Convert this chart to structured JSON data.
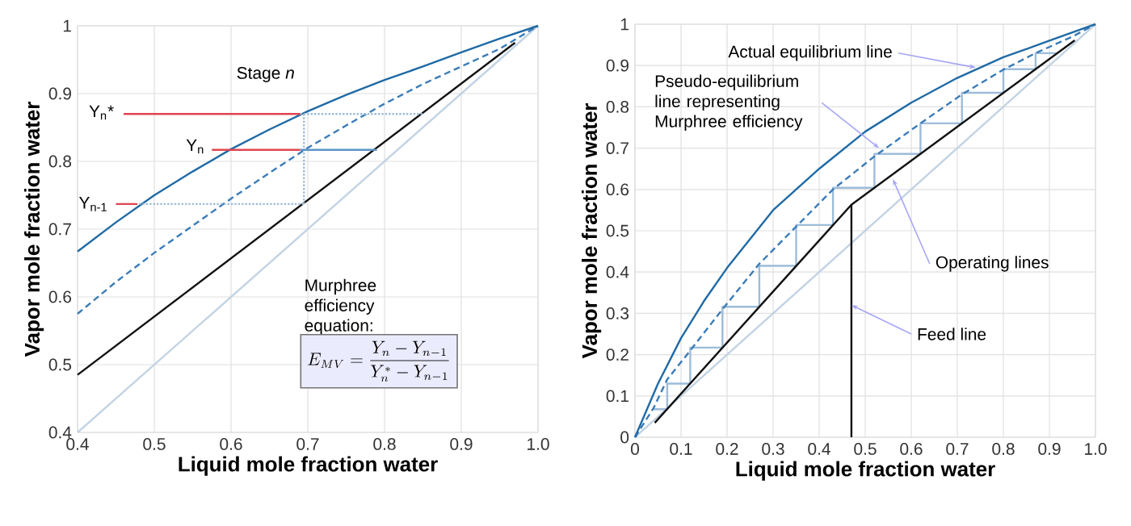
{
  "chart_data": [
    {
      "type": "line",
      "xlabel": "Liquid mole fraction water",
      "ylabel": "Vapor mole fraction water",
      "xlim": [
        0.4,
        1
      ],
      "ylim": [
        0.4,
        1
      ],
      "xticks": [
        0.4,
        0.5,
        0.6,
        0.7,
        0.8,
        0.9,
        {
          "value": 1,
          "label": "1.0"
        }
      ],
      "yticks": [
        0.4,
        0.5,
        0.6,
        0.7,
        0.8,
        0.9,
        1
      ],
      "grid": true,
      "series": [
        {
          "x": [
            0.4,
            1
          ],
          "values": [
            0.4,
            1
          ],
          "color": "#c2d3e3",
          "line_style": "solid"
        },
        {
          "x": [
            0.4,
            0.97
          ],
          "values": [
            0.485,
            0.975
          ],
          "color": "#111111",
          "line_style": "solid"
        },
        {
          "x": [
            0.4,
            0.45,
            0.5,
            0.55,
            0.6,
            0.65,
            0.7,
            0.75,
            0.8,
            0.85,
            0.9,
            0.95,
            1
          ],
          "values": [
            0.575,
            0.622,
            0.665,
            0.705,
            0.745,
            0.783,
            0.82,
            0.853,
            0.885,
            0.914,
            0.94,
            0.966,
            1
          ],
          "color": "#3a7cb8",
          "line_style": "dashed"
        },
        {
          "x": [
            0.4,
            0.45,
            0.5,
            0.55,
            0.6,
            0.65,
            0.7,
            0.75,
            0.8,
            0.85,
            0.9,
            0.95,
            1
          ],
          "values": [
            0.667,
            0.71,
            0.75,
            0.785,
            0.818,
            0.847,
            0.874,
            0.898,
            0.92,
            0.94,
            0.961,
            0.981,
            1
          ],
          "color": "#1f6aa5",
          "line_style": "solid"
        },
        {
          "x": [
            0.69,
            0.85,
            null,
            0.48,
            0.695,
            null,
            0.695,
            0.695
          ],
          "values": [
            0.87,
            0.87,
            null,
            0.737,
            0.737,
            null,
            0.737,
            0.87
          ],
          "color": "#9dbcd9",
          "line_style": "dotted"
        },
        {
          "x": [
            0.69,
            0.79
          ],
          "values": [
            0.817,
            0.817
          ],
          "color": "#5b93c6",
          "line_style": "solid"
        },
        {
          "x": [
            0.46,
            0.69,
            null,
            0.575,
            0.69,
            null,
            0.45,
            0.478
          ],
          "values": [
            0.87,
            0.87,
            null,
            0.817,
            0.817,
            null,
            0.737,
            0.737
          ],
          "color": "#e04550",
          "line_style": "solid"
        }
      ],
      "annotations": [
        {
          "text": "Stage *n*",
          "x": 0.69,
          "y": 0.87
        },
        {
          "text": "Y$_{n}$*",
          "x": 0.46,
          "y": 0.87
        },
        {
          "text": "Y$_{n}$",
          "x": 0.575,
          "y": 0.817
        },
        {
          "text": "Y$_{n-1}$",
          "x": 0.45,
          "y": 0.737
        },
        "Murphree efficiency equation:",
        "E_{MV} = \\frac{Y_n - Y_{n-1}}{Y_n^{*} - Y_{n-1}}"
      ]
    },
    {
      "type": "line",
      "xlabel": "Liquid mole fraction water",
      "ylabel": "Vapor mole fraction water",
      "xlim": [
        0,
        1
      ],
      "ylim": [
        0,
        1
      ],
      "xticks": [
        0,
        0.1,
        0.2,
        0.3,
        0.4,
        0.5,
        0.6,
        0.7,
        0.8,
        0.9,
        {
          "value": 1,
          "label": "1.0"
        }
      ],
      "yticks": [
        0,
        0.1,
        0.2,
        0.3,
        0.4,
        0.5,
        0.6,
        0.7,
        0.8,
        0.9,
        1
      ],
      "grid": true,
      "series": [
        {
          "x": [
            0,
            1
          ],
          "values": [
            0,
            1
          ],
          "color": "#c2d3e3",
          "line_style": "solid"
        },
        {
          "x": [
            0.917,
            0.87,
            0.87,
            0.8,
            0.8,
            0.71,
            0.71,
            0.62,
            0.62,
            0.52,
            0.52,
            0.43,
            0.43,
            0.35,
            0.35,
            0.27,
            0.27,
            0.19,
            0.19,
            0.12,
            0.12,
            0.07,
            0.07,
            0.04
          ],
          "values": [
            0.93,
            0.93,
            0.891,
            0.891,
            0.834,
            0.834,
            0.76,
            0.76,
            0.686,
            0.686,
            0.604,
            0.604,
            0.514,
            0.514,
            0.415,
            0.415,
            0.316,
            0.316,
            0.217,
            0.217,
            0.13,
            0.13,
            0.068,
            0.068
          ],
          "color": "#9dbcd9",
          "line_style": "solid"
        },
        {
          "x": [
            0.043,
            0.47,
            0.955
          ],
          "values": [
            0.035,
            0.563,
            0.961
          ],
          "color": "#111111",
          "line_style": "solid"
        },
        {
          "x": [
            0.47,
            0.47
          ],
          "values": [
            0,
            0.563
          ],
          "color": "#111111",
          "line_style": "solid"
        },
        {
          "x": [
            0,
            0.04,
            0.07,
            0.12,
            0.19,
            0.27,
            0.35,
            0.43,
            0.52,
            0.62,
            0.71,
            0.8,
            0.87,
            0.95,
            1
          ],
          "values": [
            0,
            0.07,
            0.14,
            0.21,
            0.31,
            0.42,
            0.51,
            0.6,
            0.68,
            0.76,
            0.83,
            0.89,
            0.93,
            0.97,
            1
          ],
          "color": "#3a7cb8",
          "line_style": "dashed"
        },
        {
          "x": [
            0,
            0.05,
            0.1,
            0.15,
            0.2,
            0.3,
            0.4,
            0.5,
            0.6,
            0.7,
            0.8,
            0.9,
            1
          ],
          "values": [
            0,
            0.13,
            0.24,
            0.33,
            0.41,
            0.55,
            0.65,
            0.74,
            0.81,
            0.87,
            0.92,
            0.96,
            1
          ],
          "color": "#1f6aa5",
          "line_style": "solid"
        }
      ],
      "annotations": [
        {
          "text": "Actual equilibrium line",
          "x": 0.74,
          "y": 0.895
        },
        {
          "text": "Pseudo-equilibrium line representing Murphree efficiency",
          "x": 0.53,
          "y": 0.7
        },
        {
          "text": "Operating lines",
          "x": 0.56,
          "y": 0.625
        },
        {
          "text": "Feed line",
          "x": 0.47,
          "y": 0.32
        }
      ]
    }
  ]
}
